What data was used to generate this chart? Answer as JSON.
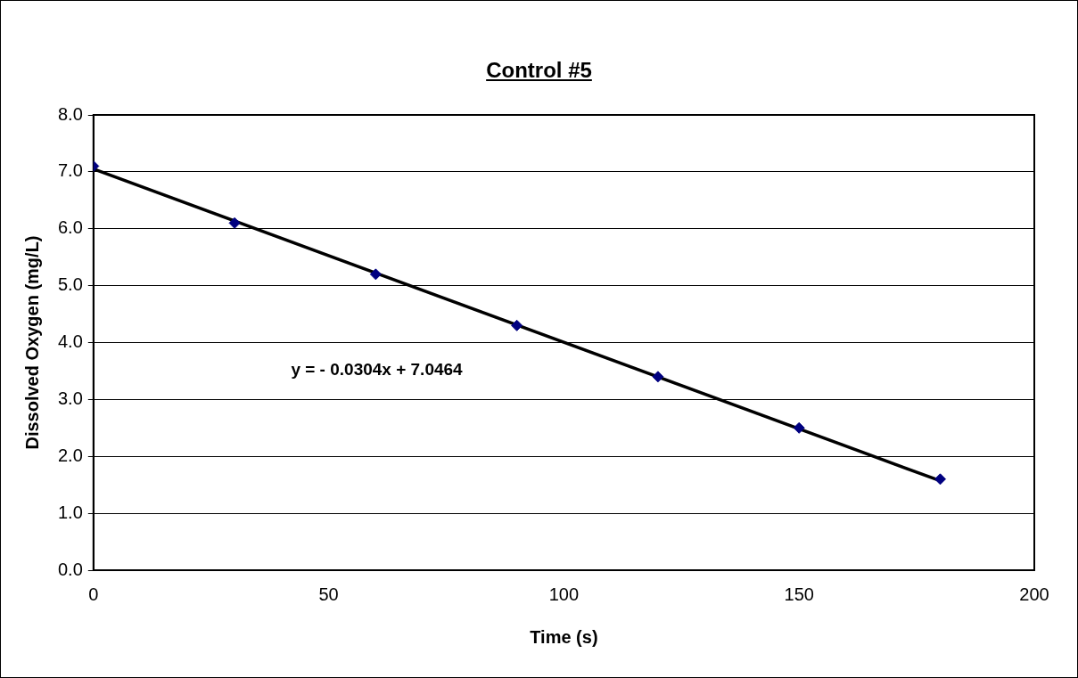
{
  "chart_data": {
    "type": "scatter",
    "title": "Control #5",
    "xlabel": "Time (s)",
    "ylabel": "Dissolved Oxygen (mg/L)",
    "x": [
      0,
      30,
      60,
      90,
      120,
      150,
      180
    ],
    "series": [
      {
        "color": "#000080",
        "values": [
          7.1,
          6.1,
          5.2,
          4.3,
          3.4,
          2.5,
          1.6
        ],
        "marker": "diamond"
      },
      {
        "type": "line",
        "color": "#000000",
        "x": [
          0,
          180
        ],
        "values": [
          7.05,
          1.57
        ],
        "marker": "none"
      }
    ],
    "xlim": [
      0,
      200
    ],
    "xticks": [
      0,
      50,
      100,
      150,
      200
    ],
    "ylim": [
      0,
      8
    ],
    "yticks": [
      {
        "value": 0,
        "label": "0.0"
      },
      {
        "value": 1,
        "label": "1.0"
      },
      {
        "value": 2,
        "label": "2.0"
      },
      {
        "value": 3,
        "label": "3.0"
      },
      {
        "value": 4,
        "label": "4.0"
      },
      {
        "value": 5,
        "label": "5.0"
      },
      {
        "value": 6,
        "label": "6.0"
      },
      {
        "value": 7,
        "label": "7.0"
      },
      {
        "value": 8,
        "label": "8.0"
      }
    ],
    "grid": "y",
    "legend": false,
    "annotations": [
      "y = - 0.0304x + 7.0464"
    ]
  }
}
